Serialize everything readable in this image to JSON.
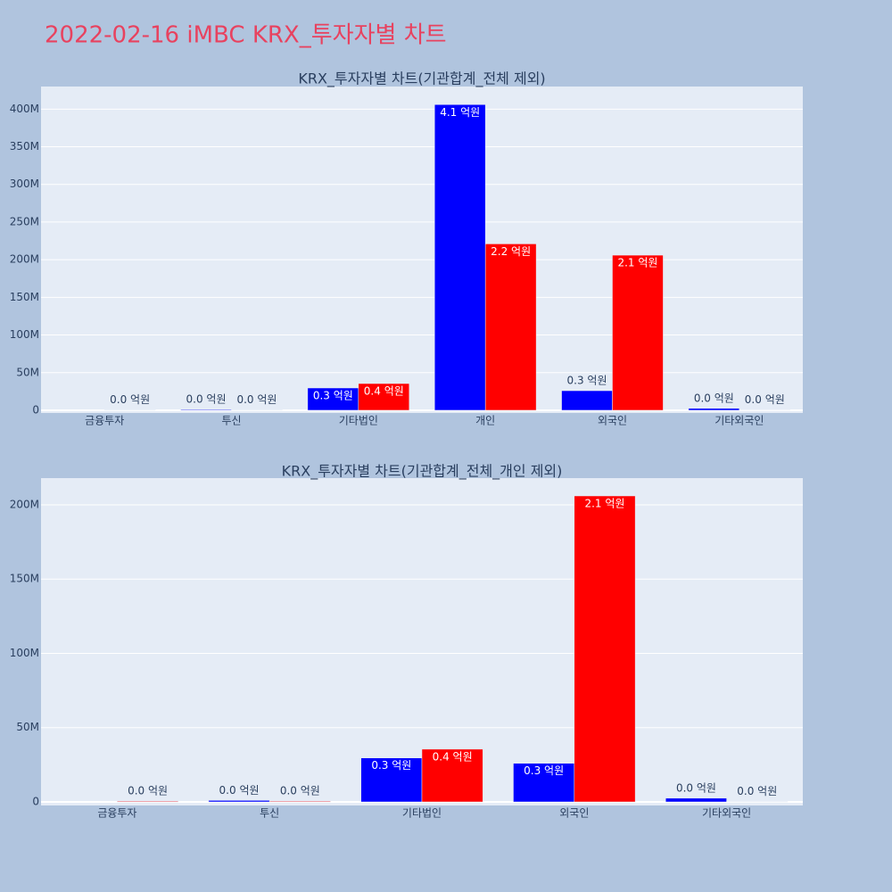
{
  "title": "2022-02-16 iMBC KRX_투자자별 차트",
  "chart_data": [
    {
      "type": "bar",
      "title": "KRX_투자자별 차트(기관합계_전체 제외)",
      "categories": [
        "금융투자",
        "투신",
        "기타법인",
        "개인",
        "외국인",
        "기타외국인"
      ],
      "series": [
        {
          "color": "#0000ff",
          "values": [
            null,
            1000000,
            29600000,
            406000000,
            26000000,
            2500000
          ],
          "value_labels": [
            null,
            "0.0 억원",
            "0.3 억원",
            "4.1 억원",
            "0.3 억원",
            "0.0 억원"
          ]
        },
        {
          "color": "#ff0000",
          "values": [
            500000,
            500000,
            35500000,
            221000000,
            206000000,
            300000
          ],
          "value_labels": [
            "0.0 억원",
            "0.0 억원",
            "0.4 억원",
            "2.2 억원",
            "2.1 억원",
            "0.0 억원"
          ]
        }
      ],
      "ylim": [
        -3600000,
        430000000
      ],
      "yticks": [
        0,
        {
          "value": 50000000,
          "label": "50M"
        },
        {
          "value": 100000000,
          "label": "100M"
        },
        {
          "value": 150000000,
          "label": "150M"
        },
        {
          "value": 200000000,
          "label": "200M"
        },
        {
          "value": 250000000,
          "label": "250M"
        },
        {
          "value": 300000000,
          "label": "300M"
        },
        {
          "value": 350000000,
          "label": "350M"
        },
        {
          "value": 400000000,
          "label": "400M"
        }
      ],
      "grid": true
    },
    {
      "type": "bar",
      "title": "KRX_투자자별 차트(기관합계_전체_개인 제외)",
      "categories": [
        "금융투자",
        "투신",
        "기타법인",
        "외국인",
        "기타외국인"
      ],
      "series": [
        {
          "color": "#0000ff",
          "values": [
            null,
            1000000,
            29600000,
            26000000,
            2500000
          ],
          "value_labels": [
            null,
            "0.0 억원",
            "0.3 억원",
            "0.3 억원",
            "0.0 억원"
          ]
        },
        {
          "color": "#ff0000",
          "values": [
            500000,
            500000,
            35500000,
            206000000,
            300000
          ],
          "value_labels": [
            "0.0 억원",
            "0.0 억원",
            "0.4 억원",
            "2.1 억원",
            "0.0 억원"
          ]
        }
      ],
      "ylim": [
        -2400000,
        218000000
      ],
      "yticks": [
        0,
        {
          "value": 50000000,
          "label": "50M"
        },
        {
          "value": 100000000,
          "label": "100M"
        },
        {
          "value": 150000000,
          "label": "150M"
        },
        {
          "value": 200000000,
          "label": "200M"
        }
      ],
      "grid": true
    }
  ]
}
